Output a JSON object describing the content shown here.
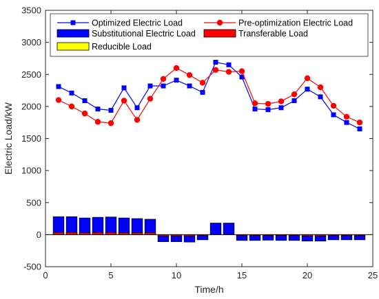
{
  "chart_data": {
    "type": "bar",
    "xlabel": "Time/h",
    "ylabel": "Electric Load/kW",
    "xlim": [
      0,
      25
    ],
    "ylim": [
      -500,
      3500
    ],
    "xticks": [
      0,
      5,
      10,
      15,
      20,
      25
    ],
    "yticks": [
      -500,
      0,
      500,
      1000,
      1500,
      2000,
      2500,
      3000,
      3500
    ],
    "grid": false,
    "legend_position": "top",
    "x": [
      1,
      2,
      3,
      4,
      5,
      6,
      7,
      8,
      9,
      10,
      11,
      12,
      13,
      14,
      15,
      16,
      17,
      18,
      19,
      20,
      21,
      22,
      23,
      24
    ],
    "series": [
      {
        "name": "Optimized Electric Load",
        "kind": "line",
        "color": "#0000ff",
        "marker": "square",
        "values": [
          2310,
          2210,
          2090,
          1960,
          1940,
          2290,
          1980,
          2320,
          2320,
          2410,
          2320,
          2220,
          2690,
          2650,
          2460,
          1960,
          1950,
          1980,
          2090,
          2270,
          2150,
          1870,
          1750,
          1650
        ]
      },
      {
        "name": "Pre-optimization Electric Load",
        "kind": "line",
        "color": "#ff0000",
        "marker": "circle",
        "values": [
          2100,
          2000,
          1890,
          1760,
          1740,
          2090,
          1790,
          2120,
          2430,
          2600,
          2490,
          2370,
          2570,
          2540,
          2550,
          2050,
          2040,
          2080,
          2190,
          2440,
          2300,
          2010,
          1840,
          1750
        ]
      },
      {
        "name": "Substitutional Electric Load",
        "kind": "bar",
        "color": "#0000ff",
        "values": [
          280,
          280,
          260,
          270,
          275,
          260,
          250,
          240,
          -110,
          -110,
          -115,
          -80,
          180,
          180,
          -90,
          -90,
          -85,
          -90,
          -90,
          -100,
          -100,
          -80,
          -80,
          -80
        ]
      },
      {
        "name": "Transferable Load",
        "kind": "bar",
        "color": "#ff0000",
        "values": [
          35,
          35,
          30,
          35,
          35,
          30,
          30,
          30,
          -20,
          -20,
          -20,
          -15,
          0,
          0,
          -15,
          -15,
          -15,
          -15,
          -15,
          -20,
          -20,
          -15,
          -15,
          -15
        ]
      },
      {
        "name": "Reducible Load",
        "kind": "bar",
        "color": "#ffff00",
        "values": [
          0,
          0,
          0,
          0,
          0,
          0,
          0,
          0,
          0,
          0,
          0,
          0,
          0,
          0,
          0,
          0,
          0,
          0,
          0,
          0,
          0,
          0,
          0,
          0
        ]
      }
    ]
  }
}
